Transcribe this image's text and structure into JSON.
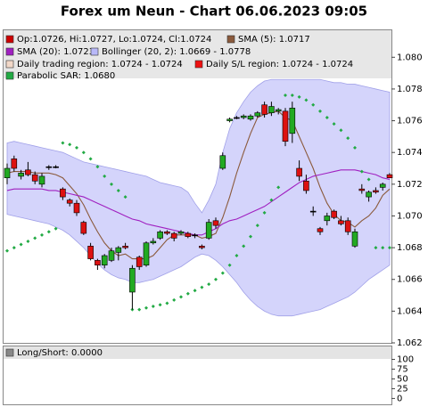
{
  "chart_data": [
    {
      "type": "candlestick",
      "title": "Forex um Neun - Chart 06.06.2023 09:05",
      "ylim": [
        1.062,
        1.0817
      ],
      "yticks": [
        1.062,
        1.064,
        1.066,
        1.068,
        {
          "value": 1.07,
          "label": "1.070"
        },
        1.072,
        1.074,
        1.076,
        1.078,
        {
          "value": 1.08,
          "label": "1.080"
        }
      ],
      "up_color": "#22aa22",
      "down_color": "#dd1111",
      "series": [
        {
          "name": "Op:1.0726, Hi:1.0727, Lo:1.0724, Cl:1.0724",
          "color": "#cc0000",
          "open": [
            1.0724,
            1.0736,
            1.0725,
            1.0729,
            1.0726,
            1.072,
            1.0731,
            1.0731,
            1.0717,
            1.071,
            1.0708,
            1.0696,
            1.0681,
            1.0672,
            1.0669,
            1.0672,
            1.0677,
            1.0681,
            1.0652,
            1.0674,
            1.0669,
            1.0683,
            1.0686,
            1.069,
            1.0689,
            1.0689,
            1.0689,
            1.0688,
            1.0681,
            1.0686,
            1.0697,
            1.073,
            1.076,
            1.0762,
            1.0762,
            1.0761,
            1.0763,
            1.077,
            1.0765,
            1.0766,
            1.0766,
            1.0752,
            1.073,
            1.0722,
            1.0703,
            1.0692,
            1.0697,
            1.0703,
            1.0697,
            1.0697,
            1.0681,
            1.0717,
            1.0712,
            1.0716,
            1.0718,
            1.0726
          ],
          "high": [
            1.0733,
            1.0738,
            1.0729,
            1.0734,
            1.0728,
            1.0727,
            1.0732,
            1.0732,
            1.0718,
            1.0711,
            1.071,
            1.0697,
            1.0683,
            1.0673,
            1.0676,
            1.068,
            1.0681,
            1.0683,
            1.0669,
            1.0675,
            1.0684,
            1.0686,
            1.0691,
            1.0691,
            1.069,
            1.0691,
            1.069,
            1.0689,
            1.0682,
            1.0698,
            1.0699,
            1.074,
            1.0762,
            1.0763,
            1.0764,
            1.0764,
            1.0766,
            1.0772,
            1.0772,
            1.0768,
            1.0768,
            1.0772,
            1.0735,
            1.0726,
            1.0706,
            1.0693,
            1.0702,
            1.0704,
            1.07,
            1.0699,
            1.0692,
            1.072,
            1.0716,
            1.0718,
            1.0721,
            1.0727
          ],
          "low": [
            1.072,
            1.0728,
            1.0723,
            1.0725,
            1.072,
            1.0718,
            1.0729,
            1.073,
            1.071,
            1.0706,
            1.07,
            1.0688,
            1.0672,
            1.0666,
            1.0667,
            1.0671,
            1.0672,
            1.0679,
            1.0641,
            1.0666,
            1.0668,
            1.0682,
            1.0685,
            1.0688,
            1.0684,
            1.0688,
            1.0686,
            1.0686,
            1.0679,
            1.0685,
            1.0692,
            1.0729,
            1.0759,
            1.0761,
            1.0761,
            1.076,
            1.0762,
            1.0762,
            1.0763,
            1.0764,
            1.0744,
            1.0746,
            1.0722,
            1.0714,
            1.07,
            1.0688,
            1.0694,
            1.0698,
            1.0694,
            1.0688,
            1.068,
            1.0714,
            1.0709,
            1.0714,
            1.0716,
            1.0724
          ],
          "close": [
            1.073,
            1.073,
            1.0727,
            1.0726,
            1.0722,
            1.0725,
            1.0731,
            1.0731,
            1.0712,
            1.0708,
            1.0702,
            1.0689,
            1.0673,
            1.0669,
            1.0675,
            1.0678,
            1.068,
            1.068,
            1.0667,
            1.0668,
            1.0683,
            1.0684,
            1.069,
            1.0689,
            1.0686,
            1.069,
            1.0687,
            1.0688,
            1.068,
            1.0696,
            1.0694,
            1.0738,
            1.0761,
            1.0762,
            1.0763,
            1.0763,
            1.0765,
            1.0764,
            1.0769,
            1.0767,
            1.0747,
            1.0768,
            1.0725,
            1.0716,
            1.0703,
            1.069,
            1.07,
            1.0699,
            1.0695,
            1.069,
            1.069,
            1.0716,
            1.0715,
            1.0715,
            1.072,
            1.0724
          ]
        },
        {
          "name": "SMA (5): 1.0717",
          "color": "#8b5a3c",
          "values": [
            1.0727,
            1.0728,
            1.0728,
            1.0728,
            1.0727,
            1.0727,
            1.0727,
            1.0726,
            1.0724,
            1.0719,
            1.0714,
            1.0707,
            1.0698,
            1.069,
            1.0683,
            1.0678,
            1.0675,
            1.0676,
            1.0673,
            1.0673,
            1.0673,
            1.0675,
            1.068,
            1.0685,
            1.0688,
            1.0688,
            1.0688,
            1.0688,
            1.0686,
            1.0687,
            1.0689,
            1.0699,
            1.0712,
            1.0727,
            1.074,
            1.0752,
            1.0762,
            1.0764,
            1.0765,
            1.0766,
            1.0762,
            1.076,
            1.075,
            1.074,
            1.073,
            1.0718,
            1.0708,
            1.0701,
            1.0697,
            1.0696,
            1.0693,
            1.0697,
            1.07,
            1.0705,
            1.0713,
            1.0717
          ]
        },
        {
          "name": "SMA (20): 1.0723",
          "color": "#a020c0",
          "values": [
            1.0716,
            1.0717,
            1.0717,
            1.0717,
            1.0717,
            1.0717,
            1.0716,
            1.0716,
            1.0715,
            1.0714,
            1.0713,
            1.0712,
            1.071,
            1.0708,
            1.0706,
            1.0704,
            1.0702,
            1.07,
            1.0698,
            1.0697,
            1.0695,
            1.0694,
            1.0693,
            1.0692,
            1.0691,
            1.069,
            1.0689,
            1.0688,
            1.0688,
            1.069,
            1.0692,
            1.0695,
            1.0697,
            1.0698,
            1.07,
            1.0702,
            1.0704,
            1.0706,
            1.0709,
            1.0712,
            1.0715,
            1.0718,
            1.0721,
            1.0723,
            1.0725,
            1.0726,
            1.0727,
            1.0728,
            1.0729,
            1.0729,
            1.0729,
            1.0728,
            1.0727,
            1.0726,
            1.0724,
            1.0723
          ]
        },
        {
          "name": "Bollinger (20, 2): 1.0669 - 1.0778",
          "color": "#b8b8f8",
          "upper": [
            1.0746,
            1.0747,
            1.0746,
            1.0745,
            1.0744,
            1.0743,
            1.0742,
            1.0741,
            1.074,
            1.0738,
            1.0736,
            1.0734,
            1.0733,
            1.0732,
            1.0731,
            1.073,
            1.0729,
            1.0728,
            1.0727,
            1.0726,
            1.0725,
            1.0723,
            1.0721,
            1.072,
            1.0719,
            1.0718,
            1.0715,
            1.0708,
            1.0702,
            1.071,
            1.072,
            1.074,
            1.0755,
            1.0765,
            1.0772,
            1.0778,
            1.0782,
            1.0785,
            1.0786,
            1.0786,
            1.0786,
            1.0786,
            1.0786,
            1.0786,
            1.0786,
            1.0786,
            1.0785,
            1.0784,
            1.0784,
            1.0783,
            1.0783,
            1.0782,
            1.0781,
            1.078,
            1.0779,
            1.0778
          ],
          "lower": [
            1.0701,
            1.07,
            1.0699,
            1.0698,
            1.0697,
            1.0696,
            1.0695,
            1.0693,
            1.0691,
            1.0688,
            1.0684,
            1.068,
            1.0675,
            1.067,
            1.0666,
            1.0663,
            1.0661,
            1.066,
            1.0658,
            1.0658,
            1.0659,
            1.066,
            1.0662,
            1.0664,
            1.0666,
            1.0668,
            1.0671,
            1.0674,
            1.0676,
            1.0675,
            1.0672,
            1.0668,
            1.0663,
            1.0658,
            1.0652,
            1.0647,
            1.0643,
            1.064,
            1.0638,
            1.0637,
            1.0637,
            1.0637,
            1.0638,
            1.0639,
            1.064,
            1.0641,
            1.0643,
            1.0645,
            1.0647,
            1.0649,
            1.0652,
            1.0656,
            1.066,
            1.0663,
            1.0666,
            1.0669
          ]
        },
        {
          "name": "Daily trading region: 1.0724 - 1.0724",
          "color": "#f2d8c8"
        },
        {
          "name": "Daily S/L region: 1.0724 - 1.0724",
          "color": "#ee1111"
        },
        {
          "name": "Parabolic SAR: 1.0680",
          "color": "#22aa44",
          "values": [
            1.0678,
            1.068,
            1.0682,
            1.0684,
            1.0686,
            1.0688,
            1.069,
            1.0692,
            1.0746,
            1.0745,
            1.0743,
            1.074,
            1.0736,
            1.0731,
            1.0725,
            1.072,
            1.0716,
            1.0712,
            1.0641,
            1.0641,
            1.0642,
            1.0643,
            1.0644,
            1.0645,
            1.0647,
            1.0649,
            1.0651,
            1.0653,
            1.0655,
            1.0657,
            1.066,
            1.0664,
            1.0669,
            1.0675,
            1.0681,
            1.0687,
            1.0694,
            1.0702,
            1.071,
            1.0718,
            1.0776,
            1.0776,
            1.0775,
            1.0773,
            1.077,
            1.0766,
            1.0762,
            1.0758,
            1.0754,
            1.0749,
            1.0743,
            1.0728,
            1.0723,
            1.068,
            1.068,
            1.068
          ]
        }
      ]
    },
    {
      "type": "line",
      "ylim": [
        -15,
        133
      ],
      "yticks": [
        0,
        25,
        50,
        75,
        100
      ],
      "series": [
        {
          "name": "Long/Short: 0.0000",
          "color": "#888888"
        }
      ]
    }
  ]
}
